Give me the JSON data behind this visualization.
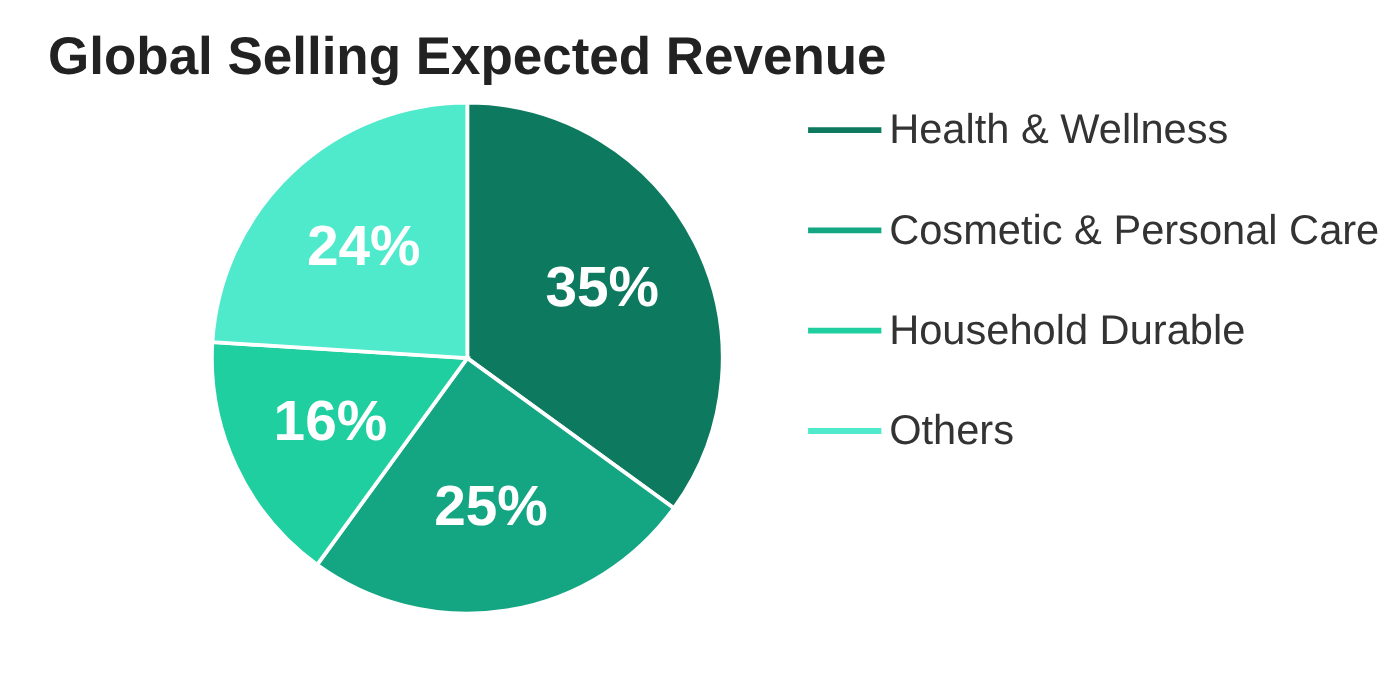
{
  "chart_data": {
    "type": "pie",
    "title": "Global Selling Expected Revenue",
    "categories": [
      "Health & Wellness",
      "Cosmetic & Personal Care",
      "Household Durable",
      "Others"
    ],
    "values": [
      35,
      25,
      16,
      24
    ],
    "colors": [
      "#0d7a5f",
      "#14a683",
      "#1fcf9f",
      "#4fe9cc"
    ],
    "value_labels": [
      "35%",
      "25%",
      "16%",
      "24%"
    ],
    "legend": "right"
  }
}
